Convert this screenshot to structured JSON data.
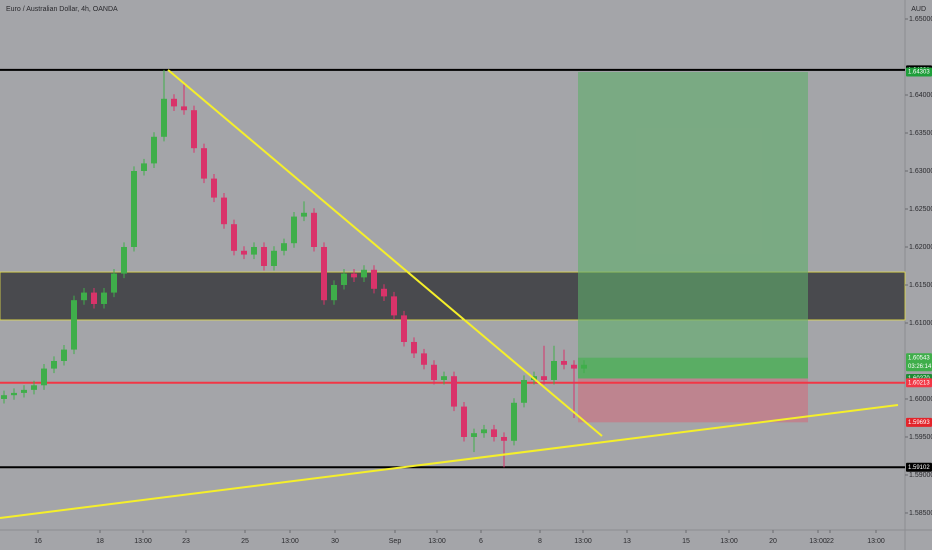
{
  "chart_data": {
    "type": "candlestick",
    "title": "Euro / Australian Dollar, 4h, OANDA",
    "currency": "AUD",
    "background": "#a4a5a9",
    "up_color": "#3fae4a",
    "down_color": "#d9336a",
    "xlim": [
      0,
      181
    ],
    "ylim": [
      1.58276,
      1.6525
    ],
    "xticks": [
      {
        "value": 7.6,
        "label": "16"
      },
      {
        "value": 20,
        "label": "18"
      },
      {
        "value": 28.6,
        "label": "13:00"
      },
      {
        "value": 37.2,
        "label": "23"
      },
      {
        "value": 49,
        "label": "25"
      },
      {
        "value": 58,
        "label": "13:00"
      },
      {
        "value": 67,
        "label": "30"
      },
      {
        "value": 79,
        "label": "Sep"
      },
      {
        "value": 87.4,
        "label": "13:00"
      },
      {
        "value": 96.2,
        "label": "6"
      },
      {
        "value": 108,
        "label": "8"
      },
      {
        "value": 116.6,
        "label": "13:00"
      },
      {
        "value": 125.4,
        "label": "13"
      },
      {
        "value": 137.2,
        "label": "15"
      },
      {
        "value": 145.8,
        "label": "13:00"
      },
      {
        "value": 154.6,
        "label": "20"
      },
      {
        "value": 163.6,
        "label": "13:00"
      },
      {
        "value": 166,
        "label": "22"
      },
      {
        "value": 175.2,
        "label": "13:00"
      }
    ],
    "yticks": [
      {
        "value": 1.65,
        "label": "1.65000"
      },
      {
        "value": 1.64,
        "label": "1.64000"
      },
      {
        "value": 1.635,
        "label": "1.63500"
      },
      {
        "value": 1.63,
        "label": "1.63000"
      },
      {
        "value": 1.625,
        "label": "1.62500"
      },
      {
        "value": 1.62,
        "label": "1.62000"
      },
      {
        "value": 1.615,
        "label": "1.61500"
      },
      {
        "value": 1.61,
        "label": "1.61000"
      },
      {
        "value": 1.6,
        "label": "1.60000"
      },
      {
        "value": 1.595,
        "label": "1.59500"
      },
      {
        "value": 1.59,
        "label": "1.59000"
      },
      {
        "value": 1.585,
        "label": "1.58500"
      }
    ],
    "x": [
      0,
      2,
      4,
      6,
      8,
      10,
      12,
      14,
      16,
      18,
      20,
      22,
      24,
      26,
      28,
      30,
      32,
      34,
      36,
      38,
      40,
      42,
      44,
      46,
      48,
      50,
      52,
      54,
      56,
      58,
      60,
      62,
      64,
      66,
      68,
      70,
      72,
      74,
      76,
      78,
      80,
      82,
      84,
      86,
      88,
      90,
      92,
      94,
      96,
      98,
      100,
      102,
      104,
      106,
      108,
      110,
      112,
      114,
      116
    ],
    "open": [
      1.6,
      1.6005,
      1.6008,
      1.6012,
      1.6018,
      1.604,
      1.605,
      1.6065,
      1.613,
      1.614,
      1.6125,
      1.614,
      1.6165,
      1.62,
      1.63,
      1.631,
      1.6345,
      1.6395,
      1.6385,
      1.638,
      1.633,
      1.629,
      1.6265,
      1.623,
      1.6195,
      1.619,
      1.62,
      1.6175,
      1.6195,
      1.6205,
      1.624,
      1.6245,
      1.62,
      1.613,
      1.615,
      1.6165,
      1.616,
      1.617,
      1.6145,
      1.6135,
      1.611,
      1.6075,
      1.606,
      1.6045,
      1.6025,
      1.603,
      1.599,
      1.595,
      1.5955,
      1.596,
      1.595,
      1.5945,
      1.5995,
      1.6025,
      1.603,
      1.6025,
      1.605,
      1.6045,
      1.604
    ],
    "high": [
      1.6011,
      1.6014,
      1.6018,
      1.6024,
      1.6046,
      1.6056,
      1.6071,
      1.6136,
      1.6146,
      1.6146,
      1.6146,
      1.6171,
      1.6206,
      1.6306,
      1.6316,
      1.6351,
      1.6433,
      1.6401,
      1.6415,
      1.6386,
      1.6336,
      1.6296,
      1.6271,
      1.6236,
      1.6201,
      1.6206,
      1.6206,
      1.6201,
      1.6211,
      1.6246,
      1.626,
      1.6251,
      1.6206,
      1.6156,
      1.6171,
      1.6171,
      1.6176,
      1.6176,
      1.6151,
      1.6141,
      1.6116,
      1.6081,
      1.6066,
      1.6051,
      1.6036,
      1.6036,
      1.5996,
      1.5961,
      1.5966,
      1.5966,
      1.5956,
      1.6001,
      1.6031,
      1.6036,
      1.607,
      1.607,
      1.6065,
      1.6051,
      1.6051
    ],
    "low": [
      1.5994,
      1.5999,
      1.6002,
      1.6006,
      1.6012,
      1.6034,
      1.6044,
      1.6059,
      1.6124,
      1.6119,
      1.6119,
      1.6134,
      1.6159,
      1.6194,
      1.6294,
      1.6304,
      1.6339,
      1.6379,
      1.6374,
      1.6324,
      1.6284,
      1.6259,
      1.6224,
      1.6189,
      1.6184,
      1.6184,
      1.6169,
      1.6169,
      1.6189,
      1.6199,
      1.6234,
      1.6194,
      1.6124,
      1.6124,
      1.6144,
      1.6154,
      1.6154,
      1.6139,
      1.6129,
      1.6104,
      1.6069,
      1.6054,
      1.6039,
      1.6019,
      1.6019,
      1.5984,
      1.5944,
      1.593,
      1.5949,
      1.5944,
      1.591,
      1.5939,
      1.5989,
      1.6019,
      1.6019,
      1.6019,
      1.6039,
      1.5975,
      1.6034
    ],
    "close": [
      1.6005,
      1.6008,
      1.6012,
      1.6018,
      1.604,
      1.605,
      1.6065,
      1.613,
      1.614,
      1.6125,
      1.614,
      1.6165,
      1.62,
      1.63,
      1.631,
      1.6345,
      1.6395,
      1.6385,
      1.638,
      1.633,
      1.629,
      1.6265,
      1.623,
      1.6195,
      1.619,
      1.62,
      1.6175,
      1.6195,
      1.6205,
      1.624,
      1.6245,
      1.62,
      1.613,
      1.615,
      1.6165,
      1.616,
      1.617,
      1.6145,
      1.6135,
      1.611,
      1.6075,
      1.606,
      1.6045,
      1.6025,
      1.603,
      1.599,
      1.595,
      1.5955,
      1.596,
      1.595,
      1.5945,
      1.5995,
      1.6025,
      1.603,
      1.6025,
      1.605,
      1.6045,
      1.604,
      1.6045
    ],
    "zone": {
      "from": 1.6104,
      "to": 1.6167,
      "color": "#3a3a3e"
    },
    "position": {
      "x": [
        115.6,
        161.6
      ],
      "entry": 1.6027,
      "target": 1.64303,
      "stop": 1.59693,
      "current": 1.60543
    },
    "hlines": [
      {
        "value": 1.64331,
        "color": "#000000"
      },
      {
        "value": 1.59102,
        "color": "#000000"
      },
      {
        "value": 1.60213,
        "color": "#f23645"
      }
    ],
    "trendlines": [
      {
        "x": [
          33.6,
          120.4
        ],
        "y": [
          1.6433,
          1.59513
        ],
        "color": "#f5ef2a"
      },
      {
        "x": [
          0,
          179.6
        ],
        "y": [
          1.58434,
          1.59921
        ],
        "color": "#f5ef2a"
      }
    ],
    "price_labels": [
      {
        "value": 1.64331,
        "label": "1.64331",
        "color": "#000000"
      },
      {
        "value": 1.64303,
        "label": "1.64303",
        "color": "#1e9e3a"
      },
      {
        "value": 1.60543,
        "label": "1.60543",
        "color": "#3fae4a",
        "countdown": "03:26:14"
      },
      {
        "value": 1.6027,
        "label": "1.60270",
        "color": "#1e8a34"
      },
      {
        "value": 1.60213,
        "label": "1.60213",
        "color": "#f23645"
      },
      {
        "value": 1.59693,
        "label": "1.59693",
        "color": "#e3242b"
      },
      {
        "value": 1.59102,
        "label": "1.59102",
        "color": "#000000"
      }
    ]
  }
}
